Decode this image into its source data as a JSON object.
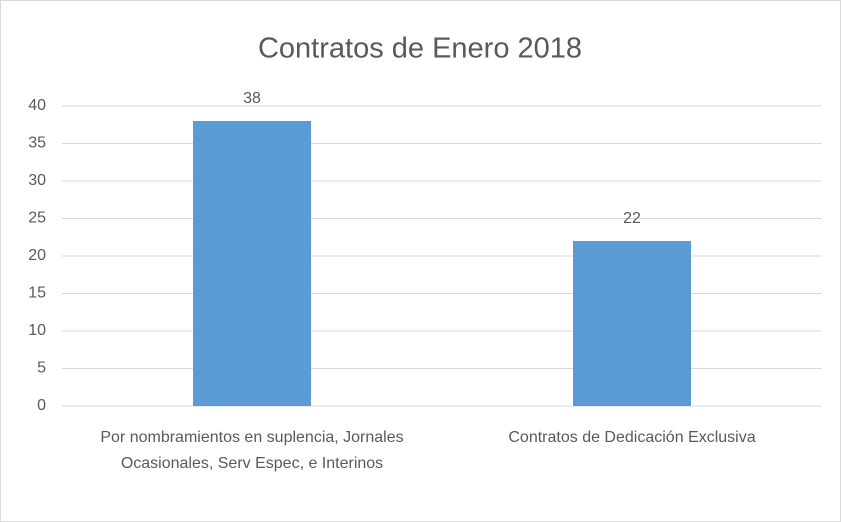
{
  "chart_data": {
    "type": "bar",
    "title": "Contratos de Enero 2018",
    "categories": [
      "Por nombramientos en suplencia, Jornales Ocasionales, Serv Espec, e Interinos",
      "Contratos de Dedicación Exclusiva"
    ],
    "values": [
      38,
      22
    ],
    "color": "#5b9bd5",
    "ylim": [
      0,
      40
    ],
    "yticks": [
      0,
      5,
      10,
      15,
      20,
      25,
      30,
      35,
      40
    ],
    "grid": true
  }
}
